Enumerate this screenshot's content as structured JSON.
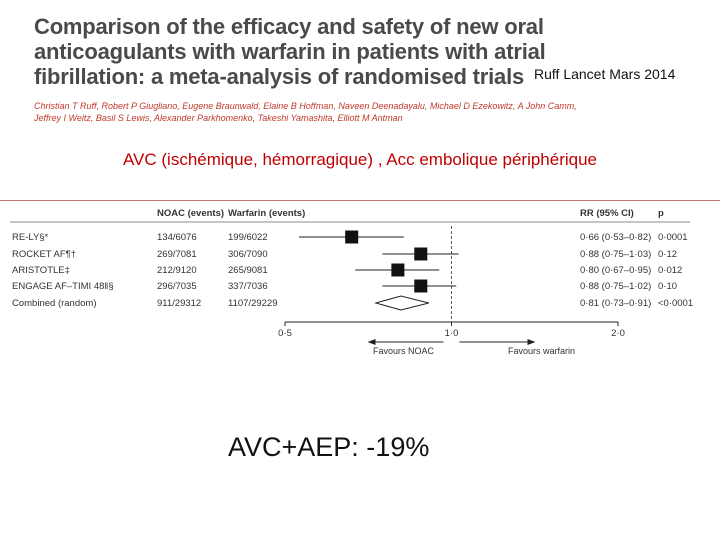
{
  "paper": {
    "title_lines": [
      "Comparison of the efficacy and safety of new oral",
      "anticoagulants with warfarin in patients with atrial",
      "fibrillation: a meta-analysis of randomised trials"
    ],
    "authors_lines": [
      "Christian T Ruff, Robert P Giugliano, Eugene Braunwald, Elaine B Hoffman, Naveen Deenadayalu, Michael D Ezekowitz, A John Camm,",
      "Jeffrey I Weitz, Basil S Lewis, Alexander Parkhomenko, Takeshi Yamashita, Elliott M Antman"
    ]
  },
  "reference": "Ruff Lancet Mars 2014",
  "subtitle": "AVC (ischémique, hémorragique) , Acc embolique périphérique",
  "result_text": "AVC+AEP:  -19%",
  "chart_data": {
    "type": "forest",
    "columns": {
      "noac": "NOAC (events)",
      "warfarin": "Warfarin (events)",
      "rr": "RR (95% CI)",
      "p": "p"
    },
    "x_scale": "log",
    "xlim": [
      0.5,
      2.0
    ],
    "ticks": [
      0.5,
      1.0,
      2.0
    ],
    "tick_labels": [
      "0·5",
      "1·0",
      "2·0"
    ],
    "direction_labels": {
      "left": "Favours NOAC",
      "right": "Favours warfarin"
    },
    "studies": [
      {
        "name": "RE-LY§*",
        "noac": "134/6076",
        "warfarin": "199/6022",
        "rr": 0.66,
        "lo": 0.53,
        "hi": 0.82,
        "rr_text": "0·66 (0·53–0·82)",
        "p": "0·0001"
      },
      {
        "name": "ROCKET AF¶†",
        "noac": "269/7081",
        "warfarin": "306/7090",
        "rr": 0.88,
        "lo": 0.75,
        "hi": 1.03,
        "rr_text": "0·88 (0·75–1·03)",
        "p": "0·12"
      },
      {
        "name": "ARISTOTLE‡",
        "noac": "212/9120",
        "warfarin": "265/9081",
        "rr": 0.8,
        "lo": 0.67,
        "hi": 0.95,
        "rr_text": "0·80 (0·67–0·95)",
        "p": "0·012"
      },
      {
        "name": "ENGAGE AF–TIMI 48‖§",
        "noac": "296/7035",
        "warfarin": "337/7036",
        "rr": 0.88,
        "lo": 0.75,
        "hi": 1.02,
        "rr_text": "0·88 (0·75–1·02)",
        "p": "0·10"
      }
    ],
    "combined": {
      "name": "Combined (random)",
      "noac": "911/29312",
      "warfarin": "1107/29229",
      "rr": 0.81,
      "lo": 0.73,
      "hi": 0.91,
      "rr_text": "0·81 (0·73–0·91)",
      "p": "<0·0001"
    }
  }
}
